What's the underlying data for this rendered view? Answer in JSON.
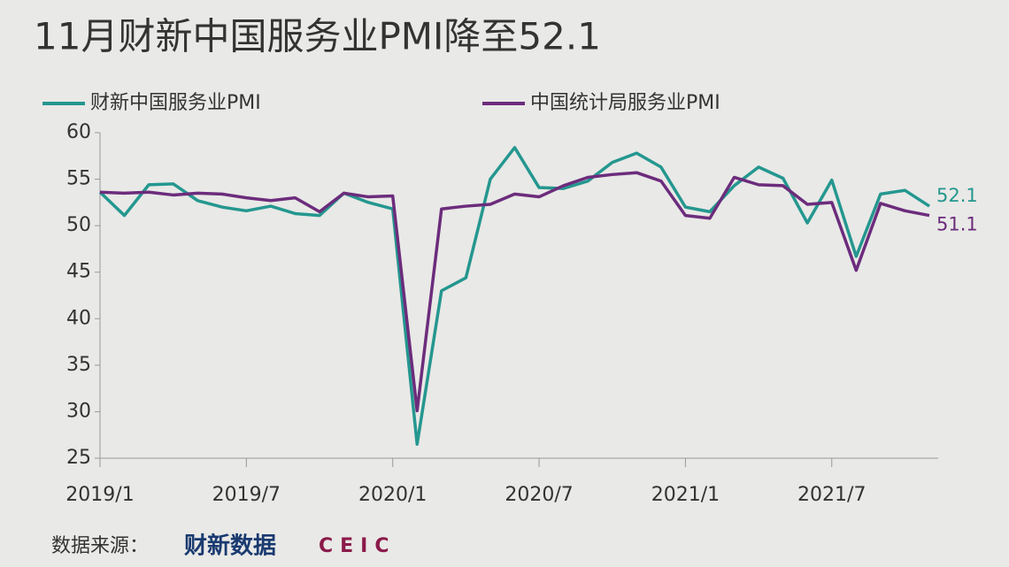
{
  "chart_data": {
    "type": "line",
    "title": "11月财新中国服务业PMI降至52.1",
    "categories": [
      "2019/1",
      null,
      null,
      null,
      null,
      null,
      "2019/7",
      null,
      null,
      null,
      null,
      null,
      "2020/1",
      null,
      null,
      null,
      null,
      null,
      "2020/7",
      null,
      null,
      null,
      null,
      null,
      "2021/1",
      null,
      null,
      null,
      null,
      null,
      "2021/7",
      null,
      null,
      null,
      null
    ],
    "series": [
      {
        "name": "财新中国服务业PMI",
        "color": "#24978f",
        "values": [
          53.6,
          51.1,
          54.4,
          54.5,
          52.7,
          52.0,
          51.6,
          52.1,
          51.3,
          51.1,
          53.5,
          52.5,
          51.8,
          26.5,
          43.0,
          44.4,
          55.0,
          58.4,
          54.1,
          54.0,
          54.8,
          56.8,
          57.8,
          56.3,
          52.0,
          51.5,
          54.3,
          56.3,
          55.1,
          50.3,
          54.9,
          46.7,
          53.4,
          53.8,
          52.1
        ]
      },
      {
        "name": "中国统计局服务业PMI",
        "color": "#6c2c7c",
        "values": [
          53.6,
          53.5,
          53.6,
          53.3,
          53.5,
          53.4,
          53.0,
          52.7,
          53.0,
          51.5,
          53.5,
          53.1,
          53.2,
          30.1,
          51.8,
          52.1,
          52.3,
          53.4,
          53.1,
          54.3,
          55.2,
          55.5,
          55.7,
          54.8,
          51.1,
          50.8,
          55.2,
          54.4,
          54.3,
          52.3,
          52.5,
          45.2,
          52.4,
          51.6,
          51.1
        ]
      }
    ],
    "ylim": [
      25,
      60
    ],
    "yticks": [
      25,
      30,
      35,
      40,
      45,
      50,
      55,
      60
    ],
    "grid": false,
    "source": "数据来源：",
    "source_logos": [
      "财新数据",
      "CEIC"
    ]
  }
}
